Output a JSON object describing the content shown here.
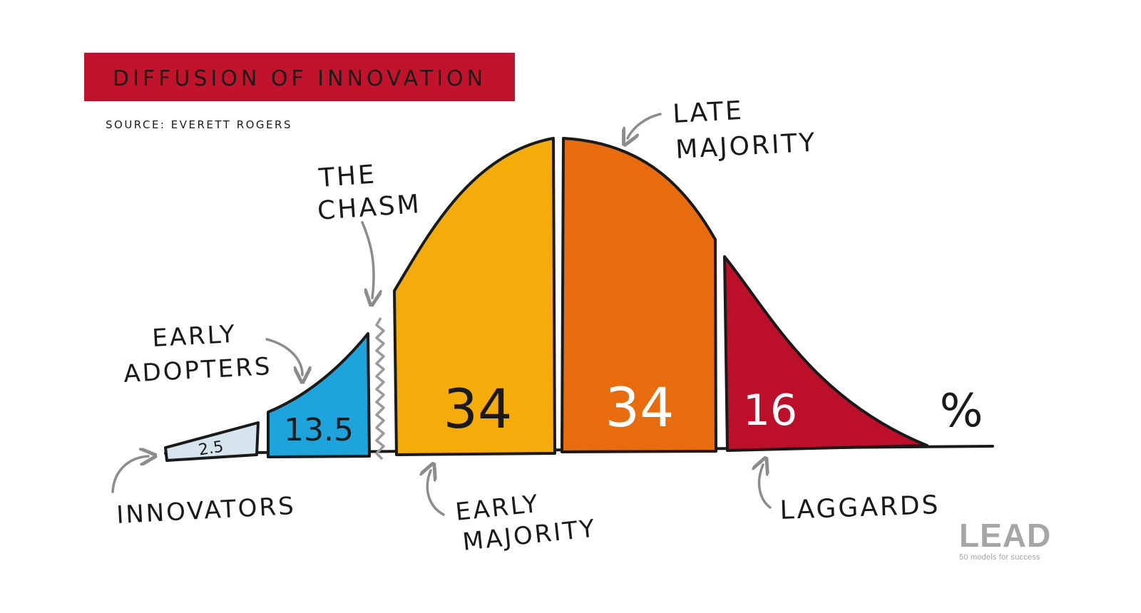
{
  "title": "DIFFUSION OF INNOVATION",
  "source": "SOURCE: EVERETT ROGERS",
  "chasm_label": [
    "THE",
    "CHASM"
  ],
  "unit_symbol": "%",
  "colors": {
    "title_bg": "#c1132b",
    "innovators": "#d6e4ee",
    "early_adopters": "#1ea4dd",
    "early_majority": "#f5ac0b",
    "late_majority": "#e86b0e",
    "laggards": "#bc0f2a",
    "outline": "#1a1a1a",
    "annotation_arrow": "#8c8c8c"
  },
  "segments": [
    {
      "id": "innovators",
      "value": "2.5",
      "label": [
        "INNOVATORS"
      ]
    },
    {
      "id": "early_adopters",
      "value": "13.5",
      "label": [
        "EARLY",
        "ADOPTERS"
      ]
    },
    {
      "id": "early_majority",
      "value": "34",
      "label": [
        "EARLY",
        "MAJORITY"
      ]
    },
    {
      "id": "late_majority",
      "value": "34",
      "label": [
        "LATE",
        "MAJORITY"
      ]
    },
    {
      "id": "laggards",
      "value": "16",
      "label": [
        "LAGGARDS"
      ]
    }
  ],
  "logo": {
    "word": "LEAD",
    "tagline": "50 models for success"
  }
}
